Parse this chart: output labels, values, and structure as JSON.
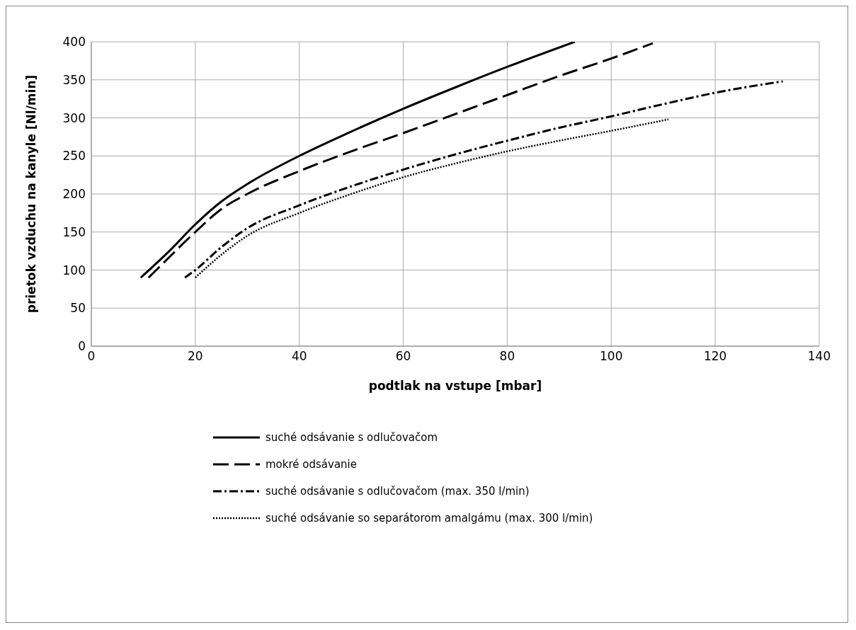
{
  "chart_data": {
    "type": "line",
    "xlabel": "podtlak na vstupe [mbar]",
    "ylabel": "prietok vzduchu na kanyle [Nl/min]",
    "xlim": [
      0,
      140
    ],
    "xticks": [
      0,
      20,
      40,
      60,
      80,
      100,
      120,
      140
    ],
    "ylim": [
      0,
      400
    ],
    "yticks": [
      0,
      50,
      100,
      150,
      200,
      250,
      300,
      350,
      400
    ],
    "grid": true,
    "legend": "bottom",
    "marker": "none",
    "series": [
      {
        "name": "suché odsávanie s odlučovačom",
        "color": "#000000",
        "line_style": "solid",
        "x": [
          9.5,
          15,
          20,
          25,
          30,
          40,
          50,
          60,
          70,
          80,
          93
        ],
        "values": [
          90,
          125,
          160,
          190,
          213,
          250,
          282,
          312,
          340,
          367,
          400
        ]
      },
      {
        "name": "mokré odsávanie",
        "color": "#000000",
        "line_style": "dashed",
        "x": [
          11,
          15,
          20,
          25,
          30,
          40,
          50,
          60,
          70,
          80,
          90,
          100,
          108
        ],
        "values": [
          90,
          117,
          150,
          180,
          200,
          230,
          256,
          280,
          305,
          330,
          355,
          378,
          398
        ]
      },
      {
        "name": "suché odsávanie s odlučovačom (max. 350 l/min)",
        "color": "#000000",
        "line_style": "dashdot",
        "x": [
          18,
          20,
          25,
          30,
          40,
          50,
          60,
          70,
          80,
          90,
          100,
          110,
          120,
          133
        ],
        "values": [
          90,
          100,
          130,
          155,
          185,
          210,
          232,
          252,
          270,
          287,
          302,
          318,
          333,
          348
        ]
      },
      {
        "name": "suché odsávanie so separátorom amalgámu (max. 300 l/min)",
        "color": "#000000",
        "line_style": "dotted",
        "x": [
          20,
          25,
          30,
          40,
          50,
          60,
          70,
          80,
          90,
          100,
          111
        ],
        "values": [
          90,
          120,
          145,
          175,
          200,
          222,
          240,
          256,
          270,
          283,
          298
        ]
      }
    ]
  }
}
